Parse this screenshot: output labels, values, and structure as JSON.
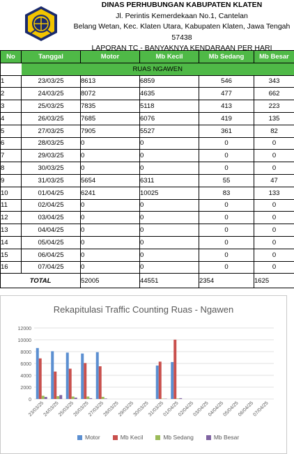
{
  "header": {
    "agency": "DINAS PERHUBUNGAN KABUPATEN KLATEN",
    "address1": "Jl. Perintis Kemerdekaan No.1, Cantelan",
    "address2": "Belang Wetan, Kec. Klaten Utara, Kabupaten Klaten, Jawa Tengah",
    "postal": "57438",
    "report": "LAPORAN TC - BANYAKNYA KENDARAAN PER HARI"
  },
  "ruas": "RUAS NGAWEN",
  "columns": [
    "No",
    "Tanggal",
    "Motor",
    "Mb Kecil",
    "Mb Sedang",
    "Mb Besar"
  ],
  "rows": [
    {
      "no": "1",
      "date": "23/03/25",
      "motor": "8613",
      "kecil": "6859",
      "sedang": "546",
      "besar": "343"
    },
    {
      "no": "2",
      "date": "24/03/25",
      "motor": "8072",
      "kecil": "4635",
      "sedang": "477",
      "besar": "662"
    },
    {
      "no": "3",
      "date": "25/03/25",
      "motor": "7835",
      "kecil": "5118",
      "sedang": "413",
      "besar": "223"
    },
    {
      "no": "4",
      "date": "26/03/25",
      "motor": "7685",
      "kecil": "6076",
      "sedang": "419",
      "besar": "135"
    },
    {
      "no": "5",
      "date": "27/03/25",
      "motor": "7905",
      "kecil": "5527",
      "sedang": "361",
      "besar": "82"
    },
    {
      "no": "6",
      "date": "28/03/25",
      "motor": "0",
      "kecil": "0",
      "sedang": "0",
      "besar": "0"
    },
    {
      "no": "7",
      "date": "29/03/25",
      "motor": "0",
      "kecil": "0",
      "sedang": "0",
      "besar": "0"
    },
    {
      "no": "8",
      "date": "30/03/25",
      "motor": "0",
      "kecil": "0",
      "sedang": "0",
      "besar": "0"
    },
    {
      "no": "9",
      "date": "31/03/25",
      "motor": "5654",
      "kecil": "6311",
      "sedang": "55",
      "besar": "47"
    },
    {
      "no": "10",
      "date": "01/04/25",
      "motor": "6241",
      "kecil": "10025",
      "sedang": "83",
      "besar": "133"
    },
    {
      "no": "11",
      "date": "02/04/25",
      "motor": "0",
      "kecil": "0",
      "sedang": "0",
      "besar": "0"
    },
    {
      "no": "12",
      "date": "03/04/25",
      "motor": "0",
      "kecil": "0",
      "sedang": "0",
      "besar": "0"
    },
    {
      "no": "13",
      "date": "04/04/25",
      "motor": "0",
      "kecil": "0",
      "sedang": "0",
      "besar": "0"
    },
    {
      "no": "14",
      "date": "05/04/25",
      "motor": "0",
      "kecil": "0",
      "sedang": "0",
      "besar": "0"
    },
    {
      "no": "15",
      "date": "06/04/25",
      "motor": "0",
      "kecil": "0",
      "sedang": "0",
      "besar": "0"
    },
    {
      "no": "16",
      "date": "07/04/25",
      "motor": "0",
      "kecil": "0",
      "sedang": "0",
      "besar": "0"
    }
  ],
  "total": {
    "label": "TOTAL",
    "motor": "52005",
    "kecil": "44551",
    "sedang": "2354",
    "besar": "1625"
  },
  "colors": {
    "header_green": "#4fb947",
    "motor": "#5b8fd1",
    "kecil": "#c9504d",
    "sedang": "#9bbb59",
    "besar": "#8064a2"
  },
  "chart_data": {
    "type": "bar",
    "title": "Rekapitulasi Traffic Counting  Ruas - Ngawen",
    "categories": [
      "23/03/25",
      "24/03/25",
      "25/03/25",
      "26/03/25",
      "27/03/25",
      "28/03/25",
      "29/03/25",
      "30/03/25",
      "31/03/25",
      "01/04/25",
      "02/04/25",
      "03/04/25",
      "04/04/25",
      "05/04/25",
      "06/04/25",
      "07/04/25"
    ],
    "series": [
      {
        "name": "Motor",
        "values": [
          8613,
          8072,
          7835,
          7685,
          7905,
          0,
          0,
          0,
          5654,
          6241,
          0,
          0,
          0,
          0,
          0,
          0
        ]
      },
      {
        "name": "Mb Kecil",
        "values": [
          6859,
          4635,
          5118,
          6076,
          5527,
          0,
          0,
          0,
          6311,
          10025,
          0,
          0,
          0,
          0,
          0,
          0
        ]
      },
      {
        "name": "Mb Sedang",
        "values": [
          546,
          477,
          413,
          419,
          361,
          0,
          0,
          0,
          55,
          83,
          0,
          0,
          0,
          0,
          0,
          0
        ]
      },
      {
        "name": "Mb Besar",
        "values": [
          343,
          662,
          223,
          135,
          82,
          0,
          0,
          0,
          47,
          133,
          0,
          0,
          0,
          0,
          0,
          0
        ]
      }
    ],
    "yticks": [
      "0",
      "2000",
      "4000",
      "6000",
      "8000",
      "10000",
      "12000"
    ],
    "ylim": [
      0,
      12000
    ],
    "grid": true,
    "legend": "bottom"
  }
}
